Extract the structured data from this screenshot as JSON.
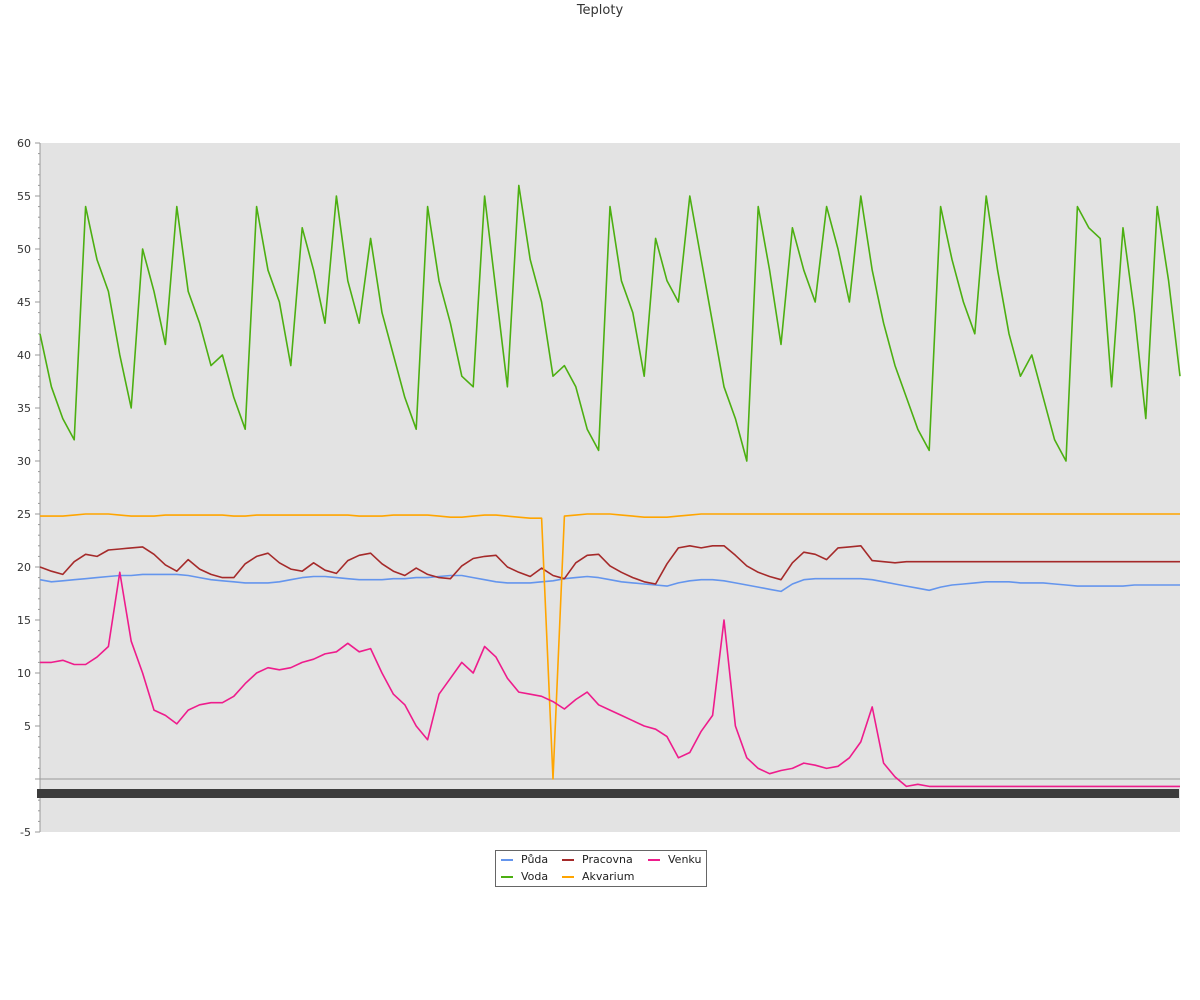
{
  "chart_data": {
    "type": "line",
    "title": "Teploty",
    "xlabel": "",
    "ylabel": "",
    "ylim": [
      -5,
      60
    ],
    "yticks": [
      -5,
      5,
      10,
      15,
      20,
      25,
      30,
      35,
      40,
      45,
      50,
      55,
      60
    ],
    "grid": false,
    "background": "#e3e3e3",
    "legend_position": "bottom-center",
    "x_labels_legible": false,
    "n_points": 101,
    "series": [
      {
        "name": "Půda",
        "color": "#6495ed",
        "values": [
          18.8,
          18.6,
          18.7,
          18.8,
          18.9,
          19,
          19.1,
          19.2,
          19.2,
          19.3,
          19.3,
          19.3,
          19.3,
          19.2,
          19,
          18.8,
          18.7,
          18.6,
          18.5,
          18.5,
          18.5,
          18.6,
          18.8,
          19,
          19.1,
          19.1,
          19,
          18.9,
          18.8,
          18.8,
          18.8,
          18.9,
          18.9,
          19,
          19,
          19.1,
          19.2,
          19.2,
          19,
          18.8,
          18.6,
          18.5,
          18.5,
          18.5,
          18.6,
          18.7,
          18.9,
          19,
          19.1,
          19,
          18.8,
          18.6,
          18.5,
          18.4,
          18.3,
          18.2,
          18.5,
          18.7,
          18.8,
          18.8,
          18.7,
          18.5,
          18.3,
          18.1,
          17.9,
          17.7,
          18.4,
          18.8,
          18.9,
          18.9,
          18.9,
          18.9,
          18.9,
          18.8,
          18.6,
          18.4,
          18.2,
          18,
          17.8,
          18.1,
          18.3,
          18.4,
          18.5,
          18.6,
          18.6,
          18.6,
          18.5,
          18.5,
          18.5,
          18.4,
          18.3,
          18.2,
          18.2,
          18.2,
          18.2,
          18.2,
          18.3,
          18.3,
          18.3,
          18.3,
          18.3
        ]
      },
      {
        "name": "Voda",
        "color": "#4caf11",
        "values": [
          42,
          37,
          34,
          32,
          54,
          49,
          46,
          40,
          35,
          50,
          46,
          41,
          54,
          46,
          43,
          39,
          40,
          36,
          33,
          54,
          48,
          45,
          39,
          52,
          48,
          43,
          55,
          47,
          43,
          51,
          44,
          40,
          36,
          33,
          54,
          47,
          43,
          38,
          37,
          55,
          46,
          37,
          56,
          49,
          45,
          38,
          39,
          37,
          33,
          31,
          54,
          47,
          44,
          38,
          51,
          47,
          45,
          55,
          49,
          43,
          37,
          34,
          30,
          54,
          48,
          41,
          52,
          48,
          45,
          54,
          50,
          45,
          55,
          48,
          43,
          39,
          36,
          33,
          31,
          54,
          49,
          45,
          42,
          55,
          48,
          42,
          38,
          40,
          36,
          32,
          30,
          54,
          52,
          51,
          37,
          52,
          44,
          34,
          54,
          47,
          38
        ]
      },
      {
        "name": "Pracovna",
        "color": "#a52a2a",
        "values": [
          20,
          19.6,
          19.3,
          20.5,
          21.2,
          21,
          21.6,
          21.7,
          21.8,
          21.9,
          21.2,
          20.2,
          19.6,
          20.7,
          19.8,
          19.3,
          19,
          19,
          20.3,
          21,
          21.3,
          20.4,
          19.8,
          19.6,
          20.4,
          19.7,
          19.4,
          20.6,
          21.1,
          21.3,
          20.3,
          19.6,
          19.2,
          19.9,
          19.3,
          19,
          18.9,
          20.1,
          20.8,
          21,
          21.1,
          20,
          19.5,
          19.1,
          19.9,
          19.2,
          18.9,
          20.4,
          21.1,
          21.2,
          20.1,
          19.5,
          19,
          18.6,
          18.4,
          20.3,
          21.8,
          22,
          21.8,
          22,
          22,
          21.1,
          20.1,
          19.5,
          19.1,
          18.8,
          20.4,
          21.4,
          21.2,
          20.7,
          21.8,
          21.9,
          22,
          20.6,
          20.5,
          20.4,
          20.5,
          20.5,
          20.5,
          20.5,
          20.5,
          20.5,
          20.5,
          20.5,
          20.5,
          20.5,
          20.5,
          20.5,
          20.5,
          20.5,
          20.5,
          20.5,
          20.5,
          20.5,
          20.5,
          20.5,
          20.5,
          20.5,
          20.5,
          20.5,
          20.5
        ]
      },
      {
        "name": "Akvarium",
        "color": "#ffa500",
        "values": [
          24.8,
          24.8,
          24.8,
          24.9,
          25,
          25,
          25,
          24.9,
          24.8,
          24.8,
          24.8,
          24.9,
          24.9,
          24.9,
          24.9,
          24.9,
          24.9,
          24.8,
          24.8,
          24.9,
          24.9,
          24.9,
          24.9,
          24.9,
          24.9,
          24.9,
          24.9,
          24.9,
          24.8,
          24.8,
          24.8,
          24.9,
          24.9,
          24.9,
          24.9,
          24.8,
          24.7,
          24.7,
          24.8,
          24.9,
          24.9,
          24.8,
          24.7,
          24.6,
          24.6,
          0,
          24.8,
          24.9,
          25,
          25,
          25,
          24.9,
          24.8,
          24.7,
          24.7,
          24.7,
          24.8,
          24.9,
          25,
          25,
          25,
          25,
          25,
          25,
          25,
          25,
          25,
          25,
          25,
          25,
          25,
          25,
          25,
          25,
          25,
          25,
          25,
          25,
          25,
          25,
          25,
          25,
          25,
          25,
          25,
          25,
          25,
          25,
          25,
          25,
          25,
          25,
          25,
          25,
          25,
          25,
          25,
          25,
          25,
          25,
          25
        ]
      },
      {
        "name": "Venku",
        "color": "#ee1c8c",
        "values": [
          11,
          11,
          11.2,
          10.8,
          10.8,
          11.5,
          12.5,
          19.5,
          13,
          10,
          6.5,
          6,
          5.2,
          6.5,
          7,
          7.2,
          7.2,
          7.8,
          9,
          10,
          10.5,
          10.3,
          10.5,
          11,
          11.3,
          11.8,
          12,
          12.8,
          12,
          12.3,
          10,
          8,
          7,
          5,
          3.7,
          8,
          9.5,
          11,
          10,
          12.5,
          11.5,
          9.5,
          8.2,
          8,
          7.8,
          7.3,
          6.6,
          7.5,
          8.2,
          7,
          6.5,
          6,
          5.5,
          5,
          4.7,
          4,
          2,
          2.5,
          4.5,
          6,
          15,
          5,
          2,
          1,
          0.5,
          0.8,
          1,
          1.5,
          1.3,
          1,
          1.2,
          2,
          3.5,
          6.8,
          1.5,
          0.2,
          -0.7,
          -0.5,
          -0.7,
          -0.7,
          -0.7,
          -0.7,
          -0.7,
          -0.7,
          -0.7,
          -0.7,
          -0.7,
          -0.7,
          -0.7,
          -0.7,
          -0.7,
          -0.7,
          -0.7,
          -0.7,
          -0.7,
          -0.7,
          -0.7,
          -0.7,
          -0.7,
          -0.7,
          -0.7
        ]
      }
    ]
  }
}
